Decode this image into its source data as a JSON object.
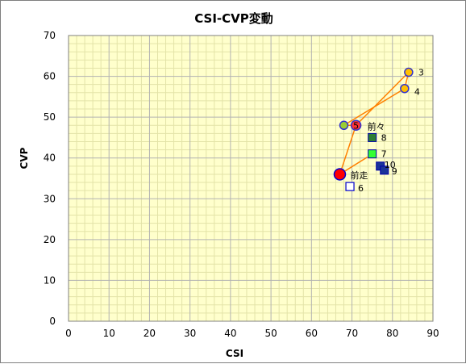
{
  "chart_data": {
    "type": "scatter",
    "title": "CSI-CVP変動",
    "xlabel": "CSI",
    "ylabel": "CVP",
    "xlim": [
      0,
      90
    ],
    "ylim": [
      0,
      70
    ],
    "x_ticks": [
      "0",
      "10",
      "20",
      "30",
      "40",
      "50",
      "60",
      "70",
      "80",
      "90"
    ],
    "y_ticks": [
      "0",
      "10",
      "20",
      "30",
      "40",
      "50",
      "60",
      "70"
    ],
    "grid": true,
    "plot_background": "#ffffcc",
    "grid_color": "#b2b2b2",
    "minor_grid_color": "#e3e3a8",
    "line_color": "#ff8000",
    "path_order": [
      "5",
      "3",
      "4",
      "前々2",
      "前々",
      "前走"
    ],
    "points": [
      {
        "label": "3",
        "x": 84,
        "y": 61,
        "marker": "circle",
        "fill": "#ffc000",
        "stroke": "#3333cc"
      },
      {
        "label": "4",
        "x": 83,
        "y": 57,
        "marker": "circle",
        "fill": "#ffc000",
        "stroke": "#3333cc"
      },
      {
        "label": "",
        "key": "前々2",
        "x": 68,
        "y": 48,
        "marker": "circle",
        "fill": "#9acd32",
        "stroke": "#3333cc"
      },
      {
        "label": "5",
        "x": 71,
        "y": 48,
        "marker": "circle-dot",
        "fill": "#ff3333",
        "stroke": "#3333cc"
      },
      {
        "label": "前々",
        "x": 71,
        "y": 48,
        "marker": "none"
      },
      {
        "label": "8",
        "x": 75,
        "y": 45,
        "marker": "square",
        "fill": "#2e7d32",
        "stroke": "#0000aa"
      },
      {
        "label": "7",
        "x": 75,
        "y": 41,
        "marker": "square",
        "fill": "#33ff33",
        "stroke": "#0000aa"
      },
      {
        "label": "10",
        "x": 77,
        "y": 38,
        "marker": "square",
        "fill": "#1a3399",
        "stroke": "#0000aa"
      },
      {
        "label": "9",
        "x": 78,
        "y": 37,
        "marker": "square",
        "fill": "#1a3399",
        "stroke": "#0000aa"
      },
      {
        "label": "前走",
        "x": 67,
        "y": 36,
        "marker": "circle-big",
        "fill": "#ff0000",
        "stroke": "#0000cc"
      },
      {
        "label": "6",
        "x": 69.5,
        "y": 33,
        "marker": "square-open",
        "fill": "#ffffff",
        "stroke": "#0000cc"
      }
    ]
  }
}
